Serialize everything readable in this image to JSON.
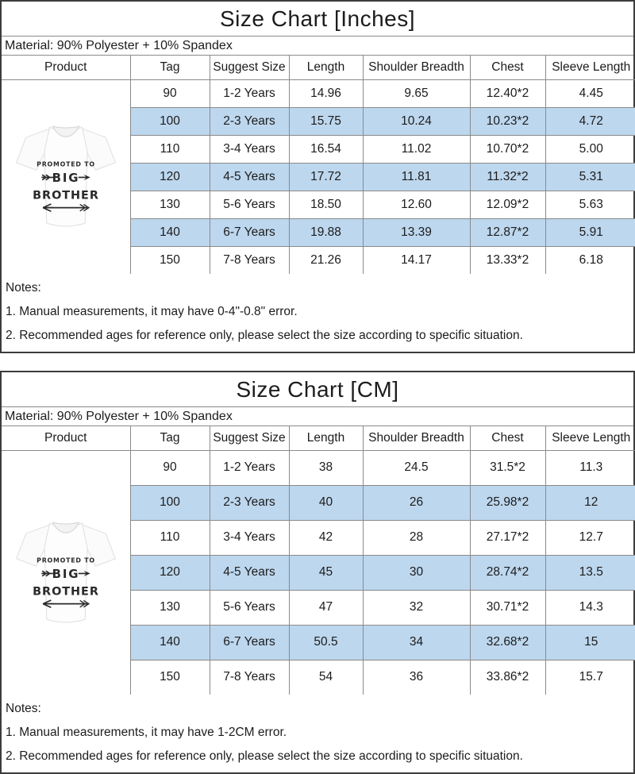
{
  "colors": {
    "row_highlight": "#bdd7ee",
    "grid_line": "#8a8a8a",
    "outer_border": "#3c3c3c",
    "text": "#1c1c1c"
  },
  "shirt": {
    "line1": "PROMOTED TO",
    "line2": "BIG",
    "line3": "BROTHER"
  },
  "tables": [
    {
      "title": "Size Chart [Inches]",
      "material": "Material: 90% Polyester + 10% Spandex",
      "headers": [
        "Product",
        "Tag",
        "Suggest Size",
        "Length",
        "Shoulder Breadth",
        "Chest",
        "Sleeve Length"
      ],
      "rows": [
        [
          "90",
          "1-2 Years",
          "14.96",
          "9.65",
          "12.40*2",
          "4.45"
        ],
        [
          "100",
          "2-3 Years",
          "15.75",
          "10.24",
          "10.23*2",
          "4.72"
        ],
        [
          "110",
          "3-4 Years",
          "16.54",
          "11.02",
          "10.70*2",
          "5.00"
        ],
        [
          "120",
          "4-5 Years",
          "17.72",
          "11.81",
          "11.32*2",
          "5.31"
        ],
        [
          "130",
          "5-6 Years",
          "18.50",
          "12.60",
          "12.09*2",
          "5.63"
        ],
        [
          "140",
          "6-7 Years",
          "19.88",
          "13.39",
          "12.87*2",
          "5.91"
        ],
        [
          "150",
          "7-8 Years",
          "21.26",
          "14.17",
          "13.33*2",
          "6.18"
        ]
      ],
      "notes_label": "Notes:",
      "notes": [
        "1. Manual measurements, it may have 0-4\"-0.8\" error.",
        "2. Recommended ages for reference only, please select the size according to specific situation."
      ]
    },
    {
      "title": "Size Chart [CM]",
      "material": "Material: 90% Polyester + 10% Spandex",
      "headers": [
        "Product",
        "Tag",
        "Suggest Size",
        "Length",
        "Shoulder Breadth",
        "Chest",
        "Sleeve Length"
      ],
      "rows": [
        [
          "90",
          "1-2 Years",
          "38",
          "24.5",
          "31.5*2",
          "11.3"
        ],
        [
          "100",
          "2-3 Years",
          "40",
          "26",
          "25.98*2",
          "12"
        ],
        [
          "110",
          "3-4 Years",
          "42",
          "28",
          "27.17*2",
          "12.7"
        ],
        [
          "120",
          "4-5 Years",
          "45",
          "30",
          "28.74*2",
          "13.5"
        ],
        [
          "130",
          "5-6 Years",
          "47",
          "32",
          "30.71*2",
          "14.3"
        ],
        [
          "140",
          "6-7 Years",
          "50.5",
          "34",
          "32.68*2",
          "15"
        ],
        [
          "150",
          "7-8 Years",
          "54",
          "36",
          "33.86*2",
          "15.7"
        ]
      ],
      "notes_label": "Notes:",
      "notes": [
        "1. Manual measurements, it may have 1-2CM error.",
        "2. Recommended ages for reference only, please select the size according to specific situation."
      ]
    }
  ]
}
